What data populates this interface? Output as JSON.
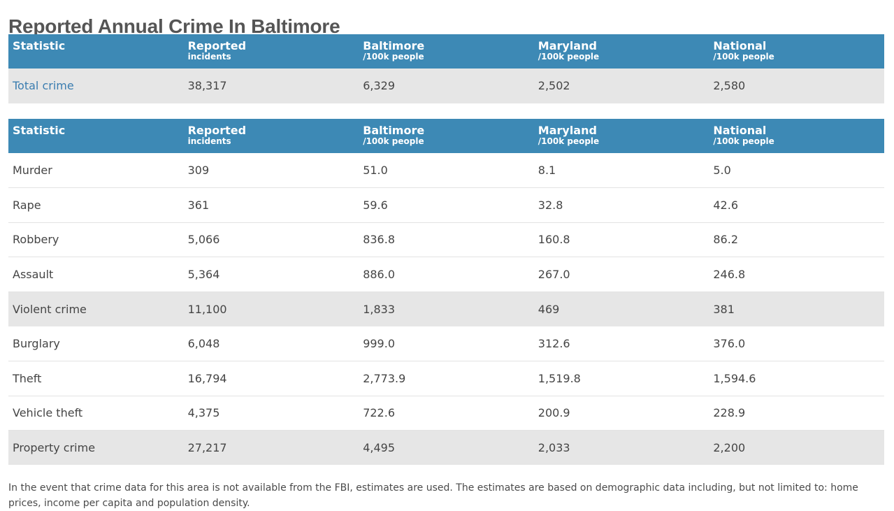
{
  "page": {
    "title": "Reported Annual Crime In Baltimore",
    "note": "In the event that crime data for this area is not available from the FBI, estimates are used. The estimates are based on demographic data including, but not limited to: home prices, income per capita and population density."
  },
  "headers": [
    {
      "main": "Statistic",
      "sub": ""
    },
    {
      "main": "Reported",
      "sub": "incidents"
    },
    {
      "main": "Baltimore",
      "sub": "/100k people"
    },
    {
      "main": "Maryland",
      "sub": "/100k people"
    },
    {
      "main": "National",
      "sub": "/100k people"
    }
  ],
  "table1": {
    "rows": [
      {
        "cells": [
          "Total crime",
          "38,317",
          "6,329",
          "2,502",
          "2,580"
        ],
        "summary": true,
        "link": true
      }
    ]
  },
  "table2": {
    "rows": [
      {
        "cells": [
          "Murder",
          "309",
          "51.0",
          "8.1",
          "5.0"
        ],
        "summary": false
      },
      {
        "cells": [
          "Rape",
          "361",
          "59.6",
          "32.8",
          "42.6"
        ],
        "summary": false
      },
      {
        "cells": [
          "Robbery",
          "5,066",
          "836.8",
          "160.8",
          "86.2"
        ],
        "summary": false
      },
      {
        "cells": [
          "Assault",
          "5,364",
          "886.0",
          "267.0",
          "246.8"
        ],
        "summary": false
      },
      {
        "cells": [
          "Violent crime",
          "11,100",
          "1,833",
          "469",
          "381"
        ],
        "summary": true
      },
      {
        "cells": [
          "Burglary",
          "6,048",
          "999.0",
          "312.6",
          "376.0"
        ],
        "summary": false
      },
      {
        "cells": [
          "Theft",
          "16,794",
          "2,773.9",
          "1,519.8",
          "1,594.6"
        ],
        "summary": false
      },
      {
        "cells": [
          "Vehicle theft",
          "4,375",
          "722.6",
          "200.9",
          "228.9"
        ],
        "summary": false
      },
      {
        "cells": [
          "Property crime",
          "27,217",
          "4,495",
          "2,033",
          "2,200"
        ],
        "summary": true
      }
    ]
  }
}
